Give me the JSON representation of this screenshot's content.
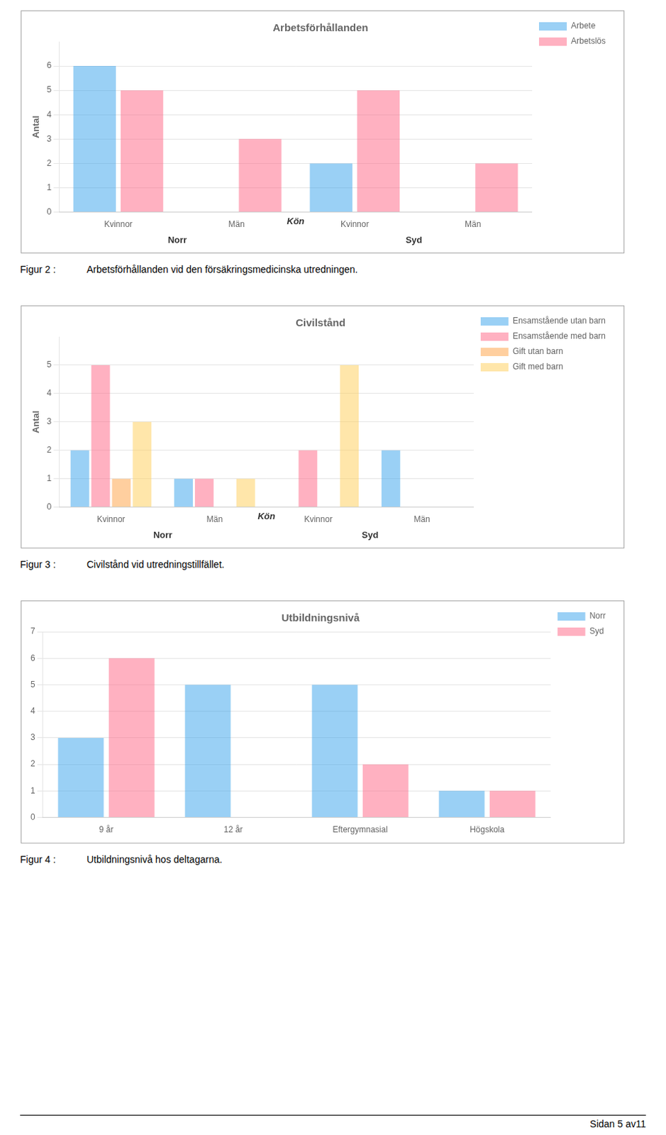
{
  "chart_data": [
    {
      "type": "bar",
      "title": "Arbetsförhållanden",
      "ylabel": "Antal",
      "categories": [
        "Kvinnor",
        "Män",
        "Kvinnor",
        "Män"
      ],
      "group_labels": [
        "Norr",
        "Syd"
      ],
      "annotations": [
        "Kön"
      ],
      "series": [
        {
          "name": "Arbete",
          "values": [
            6,
            0,
            2,
            0
          ]
        },
        {
          "name": "Arbetslös",
          "values": [
            5,
            3,
            5,
            2
          ]
        }
      ],
      "ylim": [
        0,
        7
      ],
      "yticks": [
        0,
        1,
        2,
        3,
        4,
        5,
        6
      ],
      "grid": true,
      "legend": "right",
      "caption": [
        "Figur 2 :",
        "Arbetsförhållanden vid den försäkringsmedicinska utredningen."
      ]
    },
    {
      "type": "bar",
      "title": "Civilstånd",
      "ylabel": "Antal",
      "categories": [
        "Kvinnor",
        "Män",
        "Kvinnor",
        "Män"
      ],
      "group_labels": [
        "Norr",
        "Syd"
      ],
      "annotations": [
        "Kön"
      ],
      "series": [
        {
          "name": "Ensamstående utan barn",
          "values": [
            2,
            1,
            0,
            2
          ]
        },
        {
          "name": "Ensamstående med barn",
          "values": [
            5,
            1,
            2,
            0
          ]
        },
        {
          "name": "Gift utan barn",
          "values": [
            1,
            0,
            0,
            0
          ]
        },
        {
          "name": "Gift med barn",
          "values": [
            3,
            1,
            5,
            0
          ]
        }
      ],
      "ylim": [
        0,
        6
      ],
      "yticks": [
        0,
        1,
        2,
        3,
        4,
        5
      ],
      "grid": true,
      "legend": "right",
      "caption": [
        "Figur 3 :",
        "Civilstånd vid utredningstillfället."
      ]
    },
    {
      "type": "bar",
      "title": "Utbildningsnivå",
      "categories": [
        "9 år",
        "12 år",
        "Eftergymnasial",
        "Högskola"
      ],
      "series": [
        {
          "name": "Norr",
          "values": [
            3,
            5,
            5,
            1
          ]
        },
        {
          "name": "Syd",
          "values": [
            6,
            0,
            2,
            1
          ]
        }
      ],
      "ylim": [
        0,
        7
      ],
      "yticks": [
        0,
        1,
        2,
        3,
        4,
        5,
        6,
        7
      ],
      "grid": true,
      "legend": "right",
      "caption": [
        "Figur 4 :",
        "Utbildningsnivå hos deltagarna."
      ]
    }
  ],
  "footer": "Sidan 5 av11"
}
